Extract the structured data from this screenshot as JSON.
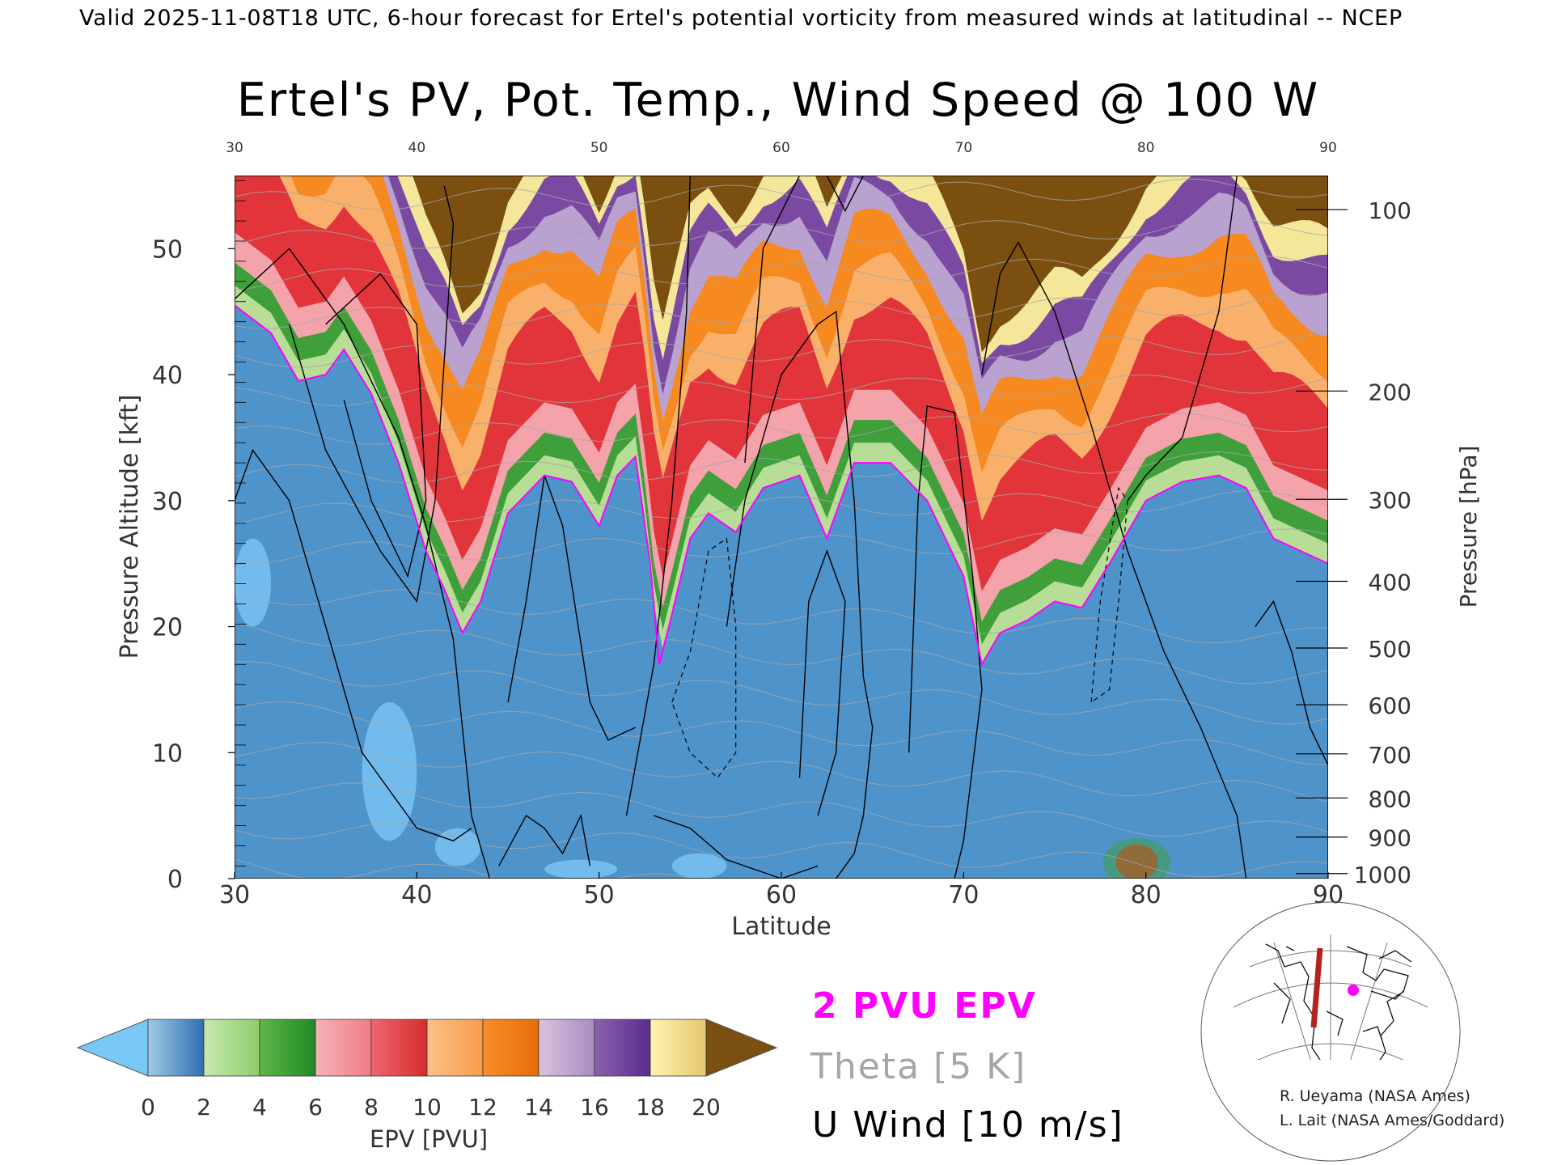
{
  "header": {
    "text": "Valid 2025-11-08T18 UTC, 6-hour forecast for Ertel's potential vorticity from measured winds at latitudinal -- NCEP"
  },
  "chart_data": {
    "type": "heatmap",
    "title": "Ertel's PV, Pot. Temp., Wind Speed @ 100 W",
    "xlabel": "Latitude",
    "ylabel_left": "Pressure Altitude [kft]",
    "ylabel_right": "Pressure [hPa]",
    "xlim": [
      30,
      90
    ],
    "ylim": [
      0,
      55.8
    ],
    "x_ticks": [
      30,
      40,
      50,
      60,
      70,
      80,
      90
    ],
    "x_tick_labels": [
      "30",
      "40",
      "50",
      "60",
      "70",
      "80",
      "90"
    ],
    "y_ticks_left": [
      0,
      10,
      20,
      30,
      40,
      50
    ],
    "y_tick_labels_left": [
      "0",
      "10",
      "20",
      "30",
      "40",
      "50"
    ],
    "pressure_ticks": [
      {
        "hpa": 100,
        "kft": 53.1,
        "label": "100"
      },
      {
        "hpa": 200,
        "kft": 38.7,
        "label": "200"
      },
      {
        "hpa": 300,
        "kft": 30.1,
        "label": "300"
      },
      {
        "hpa": 400,
        "kft": 23.6,
        "label": "400"
      },
      {
        "hpa": 500,
        "kft": 18.3,
        "label": "500"
      },
      {
        "hpa": 600,
        "kft": 13.8,
        "label": "600"
      },
      {
        "hpa": 700,
        "kft": 9.9,
        "label": "700"
      },
      {
        "hpa": 800,
        "kft": 6.4,
        "label": "800"
      },
      {
        "hpa": 900,
        "kft": 3.3,
        "label": "900"
      },
      {
        "hpa": 1000,
        "kft": 0.4,
        "label": "1000"
      }
    ],
    "pv_colorbar": {
      "label": "EPV [PVU]",
      "tick_labels": [
        "0",
        "2",
        "4",
        "6",
        "8",
        "10",
        "12",
        "14",
        "16",
        "18",
        "20"
      ],
      "bands": [
        {
          "from": 0,
          "to": 2,
          "color_a": "#9fcbe6",
          "color_b": "#2f6fb3"
        },
        {
          "from": 2,
          "to": 4,
          "color_a": "#c9e8b2",
          "color_b": "#8ccd6c"
        },
        {
          "from": 4,
          "to": 6,
          "color_a": "#5fb64a",
          "color_b": "#1f8a25"
        },
        {
          "from": 6,
          "to": 8,
          "color_a": "#f7b3b8",
          "color_b": "#ee7c85"
        },
        {
          "from": 8,
          "to": 10,
          "color_a": "#f06670",
          "color_b": "#d62c2c"
        },
        {
          "from": 10,
          "to": 12,
          "color_a": "#fcc38b",
          "color_b": "#f79a4b"
        },
        {
          "from": 12,
          "to": 14,
          "color_a": "#f98e2d",
          "color_b": "#e86b08"
        },
        {
          "from": 14,
          "to": 16,
          "color_a": "#d8c4de",
          "color_b": "#a98bc2"
        },
        {
          "from": 16,
          "to": 18,
          "color_a": "#8a61ad",
          "color_b": "#5a2c8e"
        },
        {
          "from": 18,
          "to": 20,
          "color_a": "#fff3b0",
          "color_b": "#e6c76c"
        }
      ],
      "under_color": "#79c7f4",
      "over_color": "#7b4f0f"
    },
    "tropopause_2pvu": {
      "color": "#ff00ff",
      "kft": [
        [
          30,
          45.5
        ],
        [
          32,
          43.3
        ],
        [
          33.5,
          39.5
        ],
        [
          35,
          40.0
        ],
        [
          36,
          42.0
        ],
        [
          37.5,
          38.5
        ],
        [
          39,
          33.0
        ],
        [
          40.5,
          26.0
        ],
        [
          41.5,
          23.0
        ],
        [
          42.5,
          19.5
        ],
        [
          43.5,
          22.0
        ],
        [
          45,
          29.0
        ],
        [
          47,
          32.0
        ],
        [
          48.5,
          31.5
        ],
        [
          50,
          28.0
        ],
        [
          51,
          32.0
        ],
        [
          52,
          33.5
        ],
        [
          52.8,
          25.0
        ],
        [
          53.3,
          17.0
        ],
        [
          54,
          21.0
        ],
        [
          55,
          27.0
        ],
        [
          56,
          29.0
        ],
        [
          57.5,
          27.5
        ],
        [
          59,
          31.0
        ],
        [
          61,
          32.0
        ],
        [
          62.5,
          27.0
        ],
        [
          64,
          33.0
        ],
        [
          66,
          33.0
        ],
        [
          68,
          30.0
        ],
        [
          70,
          24.0
        ],
        [
          71,
          17.0
        ],
        [
          72,
          19.5
        ],
        [
          73.5,
          20.5
        ],
        [
          75,
          22.0
        ],
        [
          76.5,
          21.5
        ],
        [
          78,
          25.0
        ],
        [
          80,
          30.0
        ],
        [
          82,
          31.5
        ],
        [
          84,
          32.0
        ],
        [
          85.5,
          31.0
        ],
        [
          87,
          27.0
        ],
        [
          88.5,
          26.0
        ],
        [
          90,
          25.0
        ]
      ]
    },
    "isentropes_K": [
      260,
      270,
      280,
      290,
      300,
      310,
      320,
      330,
      340,
      350,
      360,
      370,
      380,
      390,
      400,
      410,
      420,
      430
    ],
    "u_wind_contours_ms": [
      -10,
      0,
      10,
      30,
      50
    ],
    "legend": {
      "pv_label": "2 PVU EPV",
      "theta_label": "Theta [5 K]",
      "wind_label": "U Wind [10 m/s]",
      "pv_color": "#ff00ff",
      "theta_color": "#a6a6a6",
      "wind_color": "#000000"
    }
  },
  "inset_map": {
    "description_text": "",
    "section_color": "#b22222",
    "marker_color": "#ff00ff"
  },
  "credits": {
    "line1": "R. Ueyama (NASA Ames)",
    "line2": "L. Lait (NASA Ames/Goddard)"
  }
}
